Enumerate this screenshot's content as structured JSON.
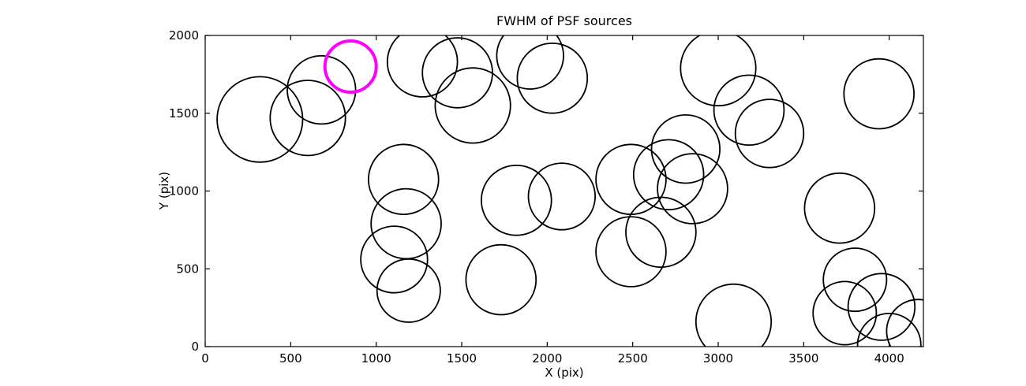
{
  "chart_data": {
    "type": "scatter",
    "title": "FWHM of PSF sources",
    "xlabel": "X (pix)",
    "ylabel": "Y (pix)",
    "xlim": [
      0,
      4200
    ],
    "ylim": [
      0,
      2000
    ],
    "x_ticks": [
      0,
      500,
      1000,
      1500,
      2000,
      2500,
      3000,
      3500,
      4000
    ],
    "y_ticks": [
      0,
      500,
      1000,
      1500,
      2000
    ],
    "grid": false,
    "legend": "none",
    "circle_color": "#000000",
    "highlight_color": "#ff00ff",
    "circles": [
      {
        "x": 850,
        "y": 1800,
        "r": 150,
        "highlight": true
      },
      {
        "x": 320,
        "y": 1460,
        "r": 250,
        "highlight": false
      },
      {
        "x": 600,
        "y": 1470,
        "r": 220,
        "highlight": false
      },
      {
        "x": 680,
        "y": 1650,
        "r": 200,
        "highlight": false
      },
      {
        "x": 1270,
        "y": 1830,
        "r": 205,
        "highlight": false
      },
      {
        "x": 1475,
        "y": 1760,
        "r": 205,
        "highlight": false
      },
      {
        "x": 1565,
        "y": 1550,
        "r": 220,
        "highlight": false
      },
      {
        "x": 1900,
        "y": 1870,
        "r": 195,
        "highlight": false
      },
      {
        "x": 2030,
        "y": 1725,
        "r": 205,
        "highlight": false
      },
      {
        "x": 3000,
        "y": 1790,
        "r": 220,
        "highlight": false
      },
      {
        "x": 3180,
        "y": 1520,
        "r": 205,
        "highlight": false
      },
      {
        "x": 3300,
        "y": 1370,
        "r": 200,
        "highlight": false
      },
      {
        "x": 3940,
        "y": 1625,
        "r": 205,
        "highlight": false
      },
      {
        "x": 1160,
        "y": 1075,
        "r": 205,
        "highlight": false
      },
      {
        "x": 1175,
        "y": 790,
        "r": 205,
        "highlight": false
      },
      {
        "x": 1105,
        "y": 560,
        "r": 195,
        "highlight": false
      },
      {
        "x": 1190,
        "y": 360,
        "r": 185,
        "highlight": false
      },
      {
        "x": 1820,
        "y": 940,
        "r": 205,
        "highlight": false
      },
      {
        "x": 2085,
        "y": 965,
        "r": 195,
        "highlight": false
      },
      {
        "x": 1730,
        "y": 430,
        "r": 205,
        "highlight": false
      },
      {
        "x": 2490,
        "y": 1075,
        "r": 205,
        "highlight": false
      },
      {
        "x": 2710,
        "y": 1105,
        "r": 205,
        "highlight": false
      },
      {
        "x": 2850,
        "y": 1015,
        "r": 205,
        "highlight": false
      },
      {
        "x": 2665,
        "y": 735,
        "r": 205,
        "highlight": false
      },
      {
        "x": 2490,
        "y": 610,
        "r": 205,
        "highlight": false
      },
      {
        "x": 2810,
        "y": 1270,
        "r": 200,
        "highlight": false
      },
      {
        "x": 3090,
        "y": 160,
        "r": 220,
        "highlight": false
      },
      {
        "x": 3710,
        "y": 890,
        "r": 205,
        "highlight": false
      },
      {
        "x": 3800,
        "y": 430,
        "r": 185,
        "highlight": false
      },
      {
        "x": 3740,
        "y": 215,
        "r": 185,
        "highlight": false
      },
      {
        "x": 3955,
        "y": 255,
        "r": 195,
        "highlight": false
      },
      {
        "x": 4000,
        "y": 10,
        "r": 185,
        "highlight": false
      },
      {
        "x": 4170,
        "y": 100,
        "r": 185,
        "highlight": false
      }
    ]
  }
}
